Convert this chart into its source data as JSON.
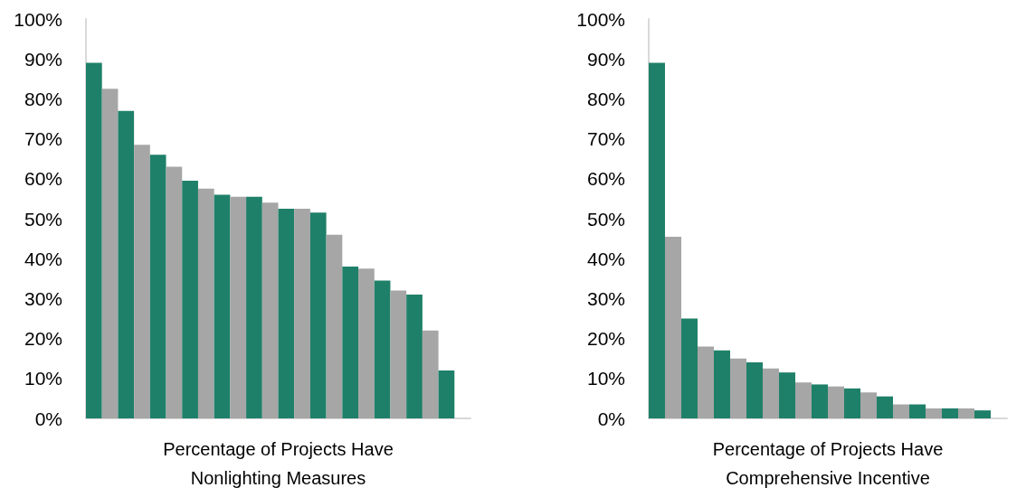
{
  "chart_data": [
    {
      "type": "bar",
      "xlabel": "Percentage of Projects Have Nonlighting Measures",
      "categories": [
        null,
        null,
        null,
        null,
        null,
        null,
        null,
        null,
        null,
        null,
        null,
        null,
        null,
        null,
        null,
        null,
        null,
        null,
        null,
        null,
        null,
        null,
        null,
        null
      ],
      "values": [
        89,
        82.5,
        77,
        68.5,
        66,
        63,
        59.5,
        57.5,
        56,
        55.5,
        55.5,
        54,
        52.5,
        52.5,
        51.5,
        46,
        38,
        37.5,
        34.5,
        32,
        31,
        22,
        12,
        null
      ],
      "colors": [
        "#1f8069",
        "#a6a6a6",
        "#1f8069",
        "#a6a6a6",
        "#1f8069",
        "#a6a6a6",
        "#1f8069",
        "#a6a6a6",
        "#1f8069",
        "#a6a6a6",
        "#1f8069",
        "#a6a6a6",
        "#1f8069",
        "#a6a6a6",
        "#1f8069",
        "#a6a6a6",
        "#1f8069",
        "#a6a6a6",
        "#1f8069",
        "#a6a6a6",
        "#1f8069",
        "#a6a6a6",
        "#1f8069",
        "#a6a6a6"
      ],
      "ylim": [
        0,
        100
      ],
      "yticks": [
        {
          "value": 0,
          "label": "0%"
        },
        {
          "value": 10,
          "label": "10%"
        },
        {
          "value": 20,
          "label": "20%"
        },
        {
          "value": 30,
          "label": "30%"
        },
        {
          "value": 40,
          "label": "40%"
        },
        {
          "value": 50,
          "label": "50%"
        },
        {
          "value": 60,
          "label": "60%"
        },
        {
          "value": 70,
          "label": "70%"
        },
        {
          "value": 80,
          "label": "80%"
        },
        {
          "value": 90,
          "label": "90%"
        },
        {
          "value": 100,
          "label": "100%"
        }
      ]
    },
    {
      "type": "bar",
      "xlabel": "Percentage of Projects Have Comprehensive Incentive",
      "categories": [
        null,
        null,
        null,
        null,
        null,
        null,
        null,
        null,
        null,
        null,
        null,
        null,
        null,
        null,
        null,
        null,
        null,
        null,
        null,
        null,
        null,
        null
      ],
      "values": [
        89,
        45.5,
        25,
        18,
        17,
        15,
        14,
        12.5,
        11.5,
        9,
        8.5,
        8,
        7.5,
        6.5,
        5.5,
        3.5,
        3.5,
        2.5,
        2.5,
        2.5,
        2,
        null
      ],
      "colors": [
        "#1f8069",
        "#a6a6a6",
        "#1f8069",
        "#a6a6a6",
        "#1f8069",
        "#a6a6a6",
        "#1f8069",
        "#a6a6a6",
        "#1f8069",
        "#a6a6a6",
        "#1f8069",
        "#a6a6a6",
        "#1f8069",
        "#a6a6a6",
        "#1f8069",
        "#a6a6a6",
        "#1f8069",
        "#a6a6a6",
        "#1f8069",
        "#a6a6a6",
        "#1f8069",
        "#a6a6a6"
      ],
      "ylim": [
        0,
        100
      ],
      "yticks": [
        {
          "value": 0,
          "label": "0%"
        },
        {
          "value": 10,
          "label": "10%"
        },
        {
          "value": 20,
          "label": "20%"
        },
        {
          "value": 30,
          "label": "30%"
        },
        {
          "value": 40,
          "label": "40%"
        },
        {
          "value": 50,
          "label": "50%"
        },
        {
          "value": 60,
          "label": "60%"
        },
        {
          "value": 70,
          "label": "70%"
        },
        {
          "value": 80,
          "label": "80%"
        },
        {
          "value": 90,
          "label": "90%"
        },
        {
          "value": 100,
          "label": "100%"
        }
      ]
    }
  ]
}
